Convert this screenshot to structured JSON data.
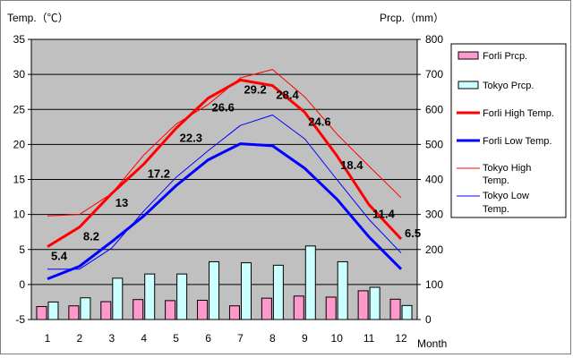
{
  "chart_data": {
    "type": "line",
    "left_axis_title": "Temp.（℃）",
    "right_axis_title": "Prcp.（mm）",
    "x_axis_title": "Month",
    "x": [
      "1",
      "2",
      "3",
      "4",
      "5",
      "6",
      "7",
      "8",
      "9",
      "10",
      "11",
      "12"
    ],
    "left_ylim": [
      -5,
      35
    ],
    "left_ticks": [
      "-5",
      "0",
      "5",
      "10",
      "15",
      "20",
      "25",
      "30",
      "35"
    ],
    "right_ylim": [
      0,
      800
    ],
    "right_ticks": [
      "0",
      "100",
      "200",
      "300",
      "400",
      "500",
      "600",
      "700",
      "800"
    ],
    "grid": true,
    "legend_position": "right",
    "series": [
      {
        "name": "Forli Prcp.",
        "kind": "bar",
        "axis": "right",
        "color": "#ff99cc",
        "values": [
          37,
          39,
          51,
          57,
          54,
          55,
          39,
          61,
          67,
          64,
          82,
          58
        ]
      },
      {
        "name": "Tokyo Prcp.",
        "kind": "bar",
        "axis": "right",
        "color": "#ccffff",
        "values": [
          50,
          62,
          118,
          130,
          130,
          165,
          162,
          155,
          210,
          165,
          92,
          40
        ]
      },
      {
        "name": "Forli High Temp.",
        "kind": "line",
        "axis": "left",
        "color": "#ff0000",
        "width": 3,
        "values": [
          5.4,
          8.2,
          13,
          17.2,
          22.3,
          26.6,
          29.2,
          28.4,
          24.6,
          18.4,
          11.4,
          6.5
        ],
        "labels": [
          "5.4",
          "8.2",
          "13",
          "17.2",
          "22.3",
          "26.6",
          "29.2",
          "28.4",
          "24.6",
          "18.4",
          "11.4",
          "6.5"
        ]
      },
      {
        "name": "Forli Low Temp.",
        "kind": "line",
        "axis": "left",
        "color": "#0000ff",
        "width": 3,
        "values": [
          0.8,
          2.6,
          6.1,
          9.8,
          14.1,
          17.8,
          20.1,
          19.8,
          16.6,
          12.2,
          6.8,
          2.2
        ]
      },
      {
        "name": "Tokyo High Temp.",
        "kind": "line",
        "axis": "left",
        "color": "#ff0000",
        "width": 1,
        "values": [
          9.8,
          10,
          13,
          18.5,
          22.9,
          25.7,
          29.5,
          30.7,
          26.8,
          21.5,
          16.9,
          12.4
        ]
      },
      {
        "name": "Tokyo Low Temp.",
        "kind": "line",
        "axis": "left",
        "color": "#0000ff",
        "width": 1,
        "values": [
          2.2,
          2.2,
          5.2,
          10.5,
          15.3,
          19.1,
          22.7,
          24.2,
          20.8,
          15,
          9.3,
          4.5
        ]
      }
    ],
    "legend_labels": {
      "forli_prcp": "Forli Prcp.",
      "tokyo_prcp": "Tokyo Prcp.",
      "forli_high": "Forli High Temp.",
      "forli_low": "Forli Low Temp.",
      "tokyo_high_1": "Tokyo High",
      "tokyo_high_2": "Temp.",
      "tokyo_low_1": "Tokyo Low",
      "tokyo_low_2": "Temp."
    },
    "colors": {
      "plot_background": "#c0c0c0",
      "grid": "#000000",
      "forli_prcp_bar": "#ff99cc",
      "tokyo_prcp_bar": "#ccffff",
      "forli_high_line": "#ff0000",
      "forli_low_line": "#0000ff",
      "tokyo_high_line": "#ff0000",
      "tokyo_low_line": "#0000ff"
    }
  }
}
